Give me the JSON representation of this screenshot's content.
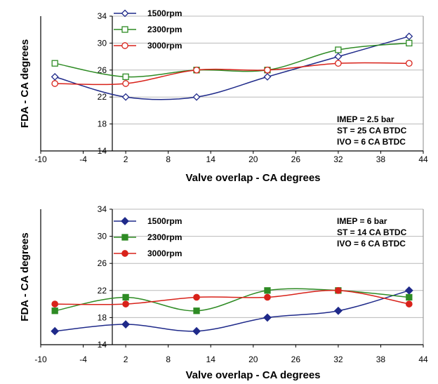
{
  "chart_data": [
    {
      "type": "line",
      "xlabel": "Valve overlap  -  CA degrees",
      "ylabel": "FDA  -  CA degrees",
      "xlim": [
        -10,
        44
      ],
      "ylim": [
        14,
        34
      ],
      "x_ticks": [
        -10,
        -4,
        2,
        8,
        14,
        20,
        26,
        32,
        38,
        44
      ],
      "y_ticks": [
        14,
        18,
        22,
        26,
        30,
        34
      ],
      "grid": true,
      "legend_position": "top-left",
      "annotations": [
        "IMEP = 2.5 bar",
        "ST = 25 CA BTDC",
        "IVO = 6 CA BTDC"
      ],
      "x": [
        -8,
        2,
        12,
        22,
        32,
        42
      ],
      "series": [
        {
          "name": "1500rpm",
          "values": [
            25,
            22,
            22,
            25,
            28,
            31
          ],
          "color": "#1f2a8a",
          "marker": "diamond-open"
        },
        {
          "name": "2300rpm",
          "values": [
            27,
            25,
            26,
            26,
            29,
            30
          ],
          "color": "#2e8b24",
          "marker": "square-open"
        },
        {
          "name": "3000rpm",
          "values": [
            24,
            24,
            26,
            26,
            27,
            27
          ],
          "color": "#d8221a",
          "marker": "circle-open"
        }
      ]
    },
    {
      "type": "line",
      "xlabel": "Valve overlap  -  CA degrees",
      "ylabel": "FDA  -  CA degrees",
      "xlim": [
        -10,
        44
      ],
      "ylim": [
        14,
        34
      ],
      "x_ticks": [
        -10,
        -4,
        2,
        8,
        14,
        20,
        26,
        32,
        38,
        44
      ],
      "y_ticks": [
        14,
        18,
        22,
        26,
        30,
        34
      ],
      "grid": true,
      "legend_position": "top-left",
      "annotations": [
        "IMEP = 6 bar",
        "ST = 14 CA BTDC",
        "IVO = 6 CA BTDC"
      ],
      "x": [
        -8,
        2,
        12,
        22,
        32,
        42
      ],
      "series": [
        {
          "name": "1500rpm",
          "values": [
            16,
            17,
            16,
            18,
            19,
            22
          ],
          "color": "#1f2a8a",
          "marker": "diamond-filled"
        },
        {
          "name": "2300rpm",
          "values": [
            19,
            21,
            19,
            22,
            22,
            21
          ],
          "color": "#2e8b24",
          "marker": "square-filled"
        },
        {
          "name": "3000rpm",
          "values": [
            20,
            20,
            21,
            21,
            22,
            20
          ],
          "color": "#d8221a",
          "marker": "circle-filled"
        }
      ]
    }
  ]
}
